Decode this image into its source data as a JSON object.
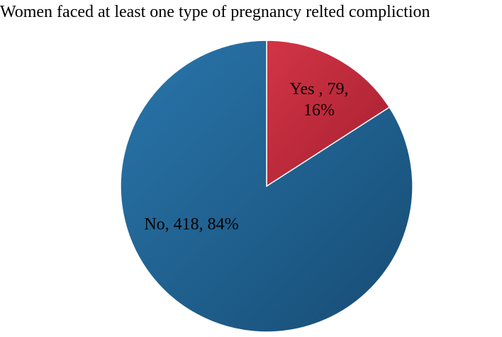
{
  "chart_data": {
    "type": "pie",
    "title": "Women faced at least one type of pregnancy relted compliction",
    "slices": [
      {
        "label": "Yes",
        "count": 79,
        "percent": 16,
        "color": "#c0283a",
        "data_label_lines": [
          "Yes , 79,",
          "16%"
        ]
      },
      {
        "label": "No",
        "count": 418,
        "percent": 84,
        "color": "#1d5f8e",
        "data_label_lines": [
          "No, 418, 84%"
        ]
      }
    ],
    "start_angle_deg": 0,
    "direction": "clockwise",
    "legend": "none"
  }
}
